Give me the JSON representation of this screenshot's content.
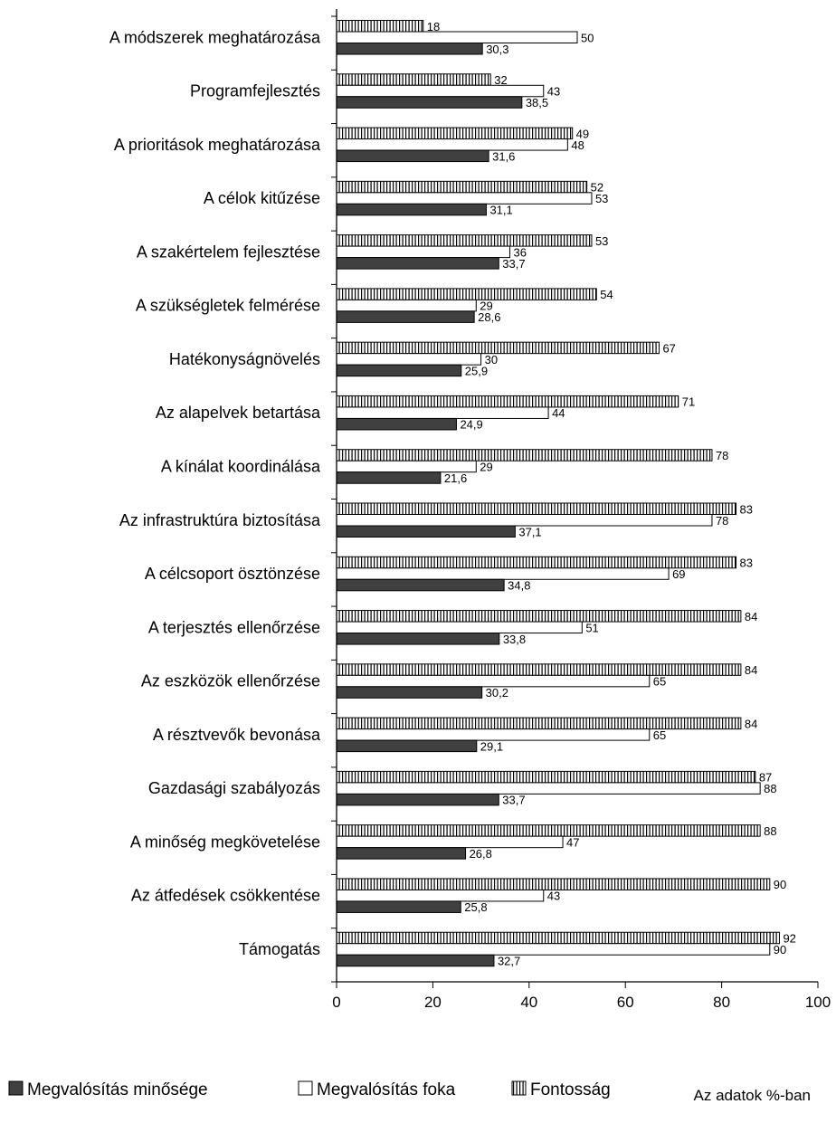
{
  "chart_data": {
    "type": "bar",
    "orientation": "horizontal",
    "categories": [
      "A módszerek meghatározása",
      "Programfejlesztés",
      "A prioritások meghatározása",
      "A célok kitűzése",
      "A szakértelem fejlesztése",
      "A szükségletek felmérése",
      "Hatékonyságnövelés",
      "Az alapelvek betartása",
      "A kínálat koordinálása",
      "Az infrastruktúra biztosítása",
      "A célcsoport ösztönzése",
      "A terjesztés ellenőrzése",
      "Az eszközök ellenőrzése",
      "A résztvevők bevonása",
      "Gazdasági szabályozás",
      "A minőség megkövetelése",
      "Az átfedések csökkentése",
      "Támogatás"
    ],
    "series": [
      {
        "name": "Fontosság",
        "color": "#ffffff",
        "pattern": "vertical-stripes",
        "values": [
          18,
          32,
          49,
          52,
          53,
          54,
          67,
          71,
          78,
          83,
          83,
          84,
          84,
          84,
          87,
          88,
          90,
          92
        ],
        "labels": [
          "18",
          "32",
          "49",
          "52",
          "53",
          "54",
          "67",
          "71",
          "78",
          "83",
          "83",
          "84",
          "84",
          "84",
          "87",
          "88",
          "90",
          "92"
        ]
      },
      {
        "name": "Megvalósítás foka",
        "color": "#ffffff",
        "pattern": "none",
        "values": [
          50,
          43,
          48,
          53,
          36,
          29,
          30,
          44,
          29,
          78,
          69,
          51,
          65,
          65,
          88,
          47,
          43,
          90
        ],
        "labels": [
          "50",
          "43",
          "48",
          "53",
          "36",
          "29",
          "30",
          "44",
          "29",
          "78",
          "69",
          "51",
          "65",
          "65",
          "88",
          "47",
          "43",
          "90"
        ]
      },
      {
        "name": "Megvalósítás minősége",
        "color": "#404040",
        "pattern": "solid",
        "values": [
          30.3,
          38.5,
          31.6,
          31.1,
          33.7,
          28.6,
          25.9,
          24.9,
          21.6,
          37.1,
          34.8,
          33.8,
          30.2,
          29.1,
          33.7,
          26.8,
          25.8,
          32.7
        ],
        "labels": [
          "30,3",
          "38,5",
          "31,6",
          "31,1",
          "33,7",
          "28,6",
          "25,9",
          "24,9",
          "21,6",
          "37,1",
          "34,8",
          "33,8",
          "30,2",
          "29,1",
          "33,7",
          "26,8",
          "25,8",
          "32,7"
        ]
      }
    ],
    "xlim": [
      0,
      100
    ],
    "xticks": [
      0,
      20,
      40,
      60,
      80,
      100
    ],
    "xtick_labels": [
      "0",
      "20",
      "40",
      "60",
      "80",
      "100"
    ],
    "legend": {
      "placement": "bottom",
      "entries": [
        "Megvalósítás minősége",
        "Megvalósítás foka",
        "Fontosság"
      ]
    },
    "note": "Az adatok %-ban",
    "grid": false
  }
}
